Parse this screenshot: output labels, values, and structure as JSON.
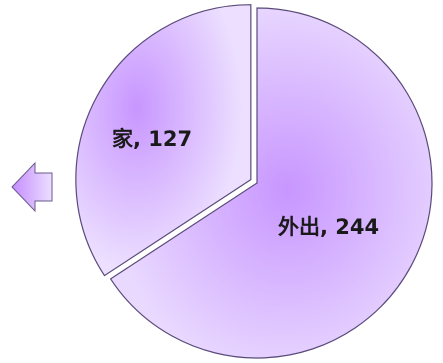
{
  "chart_data": {
    "type": "pie",
    "title": "",
    "slices": [
      {
        "label": "外出",
        "value": 244,
        "display": "外出, 244"
      },
      {
        "label": "家",
        "value": 127,
        "display": "家, 127",
        "exploded": true
      }
    ],
    "colors": {
      "fill_light": "#e9d9ff",
      "fill_center": "#c896ff",
      "outline": "#5a4a7a"
    },
    "legend": "none",
    "grid": false,
    "annotation_icon": "left-arrow-icon"
  }
}
